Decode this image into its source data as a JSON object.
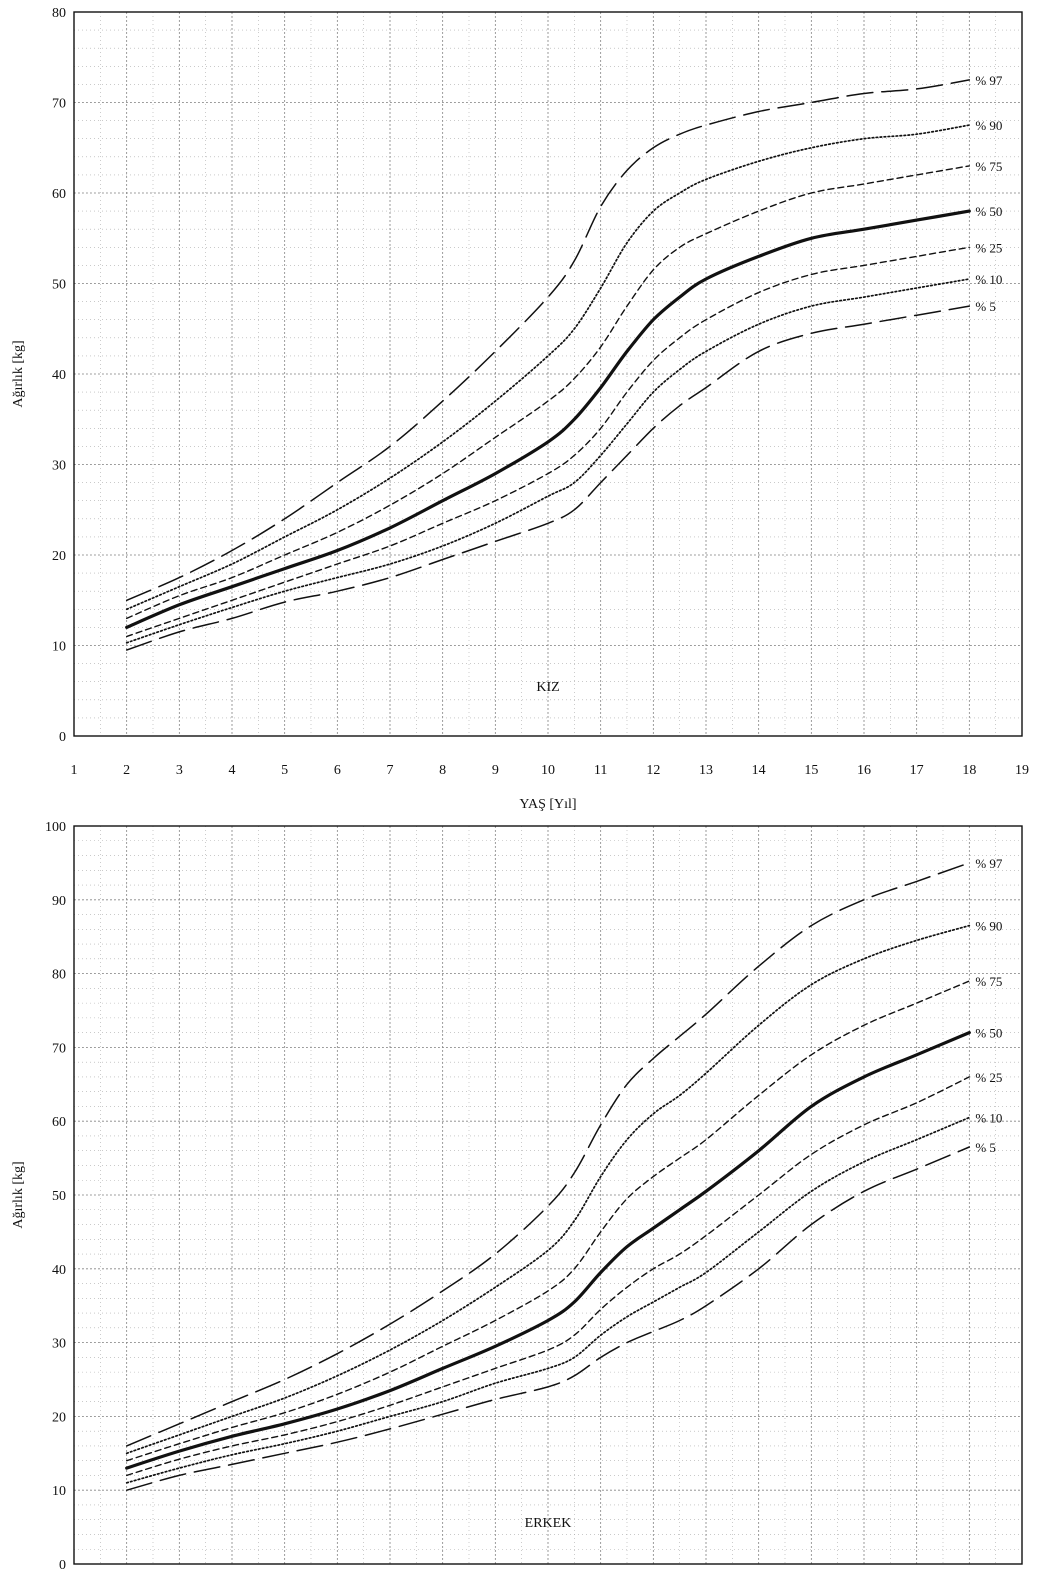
{
  "chart_data": [
    {
      "type": "line",
      "panel_label": "KIZ",
      "xlabel": "YAŞ [Yıl]",
      "ylabel": "Ağırlık [kg]",
      "xlim": [
        1,
        19
      ],
      "ylim": [
        0,
        80
      ],
      "xticks": [
        1,
        2,
        3,
        4,
        5,
        6,
        7,
        8,
        9,
        10,
        11,
        12,
        13,
        14,
        15,
        16,
        17,
        18,
        19
      ],
      "yticks": [
        0,
        10,
        20,
        30,
        40,
        50,
        60,
        70,
        80
      ],
      "grid": true,
      "x": [
        2,
        3,
        4,
        5,
        6,
        7,
        8,
        9,
        10,
        10.5,
        11,
        11.5,
        12,
        12.5,
        13,
        14,
        15,
        16,
        17,
        18
      ],
      "series": [
        {
          "name": "% 97",
          "dash": "long",
          "values": [
            15,
            17.5,
            20.5,
            24,
            28,
            32,
            37,
            42.5,
            48.5,
            52.5,
            58.5,
            62.5,
            65,
            66.5,
            67.5,
            69,
            70,
            71,
            71.5,
            72.5
          ]
        },
        {
          "name": "% 90",
          "dash": "dot",
          "values": [
            14,
            16.5,
            19,
            22,
            25,
            28.5,
            32.5,
            37,
            42,
            45,
            49.5,
            54.5,
            58,
            60,
            61.5,
            63.5,
            65,
            66,
            66.5,
            67.5
          ]
        },
        {
          "name": "% 75",
          "dash": "short",
          "values": [
            13,
            15.5,
            17.5,
            20,
            22.5,
            25.5,
            29,
            33,
            37,
            39.5,
            43,
            47.5,
            51.5,
            54,
            55.5,
            58,
            60,
            61,
            62,
            63
          ]
        },
        {
          "name": "% 50",
          "dash": "solid",
          "values": [
            12,
            14.5,
            16.5,
            18.5,
            20.5,
            23,
            26,
            29,
            32.5,
            35,
            38.5,
            42.5,
            46,
            48.5,
            50.5,
            53,
            55,
            56,
            57,
            58
          ]
        },
        {
          "name": "% 25",
          "dash": "short",
          "values": [
            11,
            13,
            15,
            17,
            19,
            21,
            23.5,
            26,
            29,
            31,
            34,
            38,
            41.5,
            44,
            46,
            49,
            51,
            52,
            53,
            54
          ]
        },
        {
          "name": "% 10",
          "dash": "dot",
          "values": [
            10.3,
            12.3,
            14.2,
            16,
            17.5,
            19,
            21,
            23.5,
            26.5,
            28,
            31,
            34.5,
            38,
            40.5,
            42.5,
            45.5,
            47.5,
            48.5,
            49.5,
            50.5
          ]
        },
        {
          "name": "% 5",
          "dash": "long",
          "values": [
            9.5,
            11.5,
            13,
            14.8,
            16,
            17.5,
            19.5,
            21.5,
            23.5,
            25,
            28,
            31,
            34,
            36.5,
            38.5,
            42.5,
            44.5,
            45.5,
            46.5,
            47.5
          ]
        }
      ]
    },
    {
      "type": "line",
      "panel_label": "ERKEK",
      "ylabel": "Ağırlık [kg]",
      "xlim": [
        1,
        19
      ],
      "ylim": [
        0,
        100
      ],
      "yticks": [
        0,
        10,
        20,
        30,
        40,
        50,
        60,
        70,
        80,
        90,
        100
      ],
      "grid": true,
      "x": [
        2,
        3,
        4,
        5,
        6,
        7,
        8,
        9,
        10,
        10.5,
        11,
        11.5,
        12,
        12.5,
        13,
        14,
        15,
        16,
        17,
        18
      ],
      "series": [
        {
          "name": "% 97",
          "dash": "long",
          "values": [
            16,
            19,
            22,
            25,
            28.5,
            32.5,
            37,
            42,
            48.5,
            53,
            59.5,
            65,
            68.5,
            71.5,
            74.5,
            81,
            86.5,
            90,
            92.5,
            95
          ]
        },
        {
          "name": "% 90",
          "dash": "dot",
          "values": [
            15,
            17.5,
            20,
            22.5,
            25.5,
            29,
            33,
            37.5,
            42.5,
            46.5,
            52.5,
            57.5,
            61,
            63.5,
            66.5,
            73,
            78.5,
            82,
            84.5,
            86.5
          ]
        },
        {
          "name": "% 75",
          "dash": "short",
          "values": [
            14,
            16.3,
            18.5,
            20.5,
            23,
            26,
            29.5,
            33,
            37,
            40,
            45,
            49.5,
            52.5,
            55,
            57.5,
            63.5,
            69,
            73,
            76,
            79
          ]
        },
        {
          "name": "% 50",
          "dash": "solid",
          "values": [
            13,
            15.3,
            17.3,
            19,
            21,
            23.5,
            26.5,
            29.5,
            33,
            35.5,
            39.5,
            43,
            45.5,
            48,
            50.5,
            56,
            62,
            66,
            69,
            72
          ]
        },
        {
          "name": "% 25",
          "dash": "short",
          "values": [
            12,
            14.2,
            16,
            17.5,
            19.3,
            21.5,
            24,
            26.5,
            29,
            31,
            34.5,
            37.5,
            40,
            42,
            44.5,
            50,
            55.5,
            59.5,
            62.5,
            66
          ]
        },
        {
          "name": "% 10",
          "dash": "dot",
          "values": [
            11,
            13,
            14.8,
            16.3,
            18,
            20,
            22,
            24.5,
            26.5,
            28,
            31,
            33.5,
            35.5,
            37.5,
            39.5,
            45,
            50.5,
            54.5,
            57.5,
            60.5
          ]
        },
        {
          "name": "% 5",
          "dash": "long",
          "values": [
            10,
            12,
            13.5,
            15,
            16.5,
            18.3,
            20.3,
            22.3,
            24,
            25.5,
            28,
            30,
            31.5,
            33,
            35,
            40,
            46,
            50.5,
            53.5,
            56.5
          ]
        }
      ]
    }
  ]
}
